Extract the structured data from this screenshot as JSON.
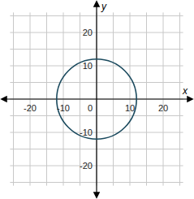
{
  "chart_data": {
    "type": "circle",
    "x_label": "x",
    "y_label": "y",
    "center": [
      0,
      0
    ],
    "radius": 12,
    "color": "#1b4a5e",
    "xlim": [
      -26,
      26
    ],
    "ylim": [
      -26,
      26
    ],
    "xticks": [
      -20,
      -10,
      0,
      10,
      20
    ],
    "yticks": [
      -20,
      -10,
      10,
      20
    ],
    "grid": true
  }
}
